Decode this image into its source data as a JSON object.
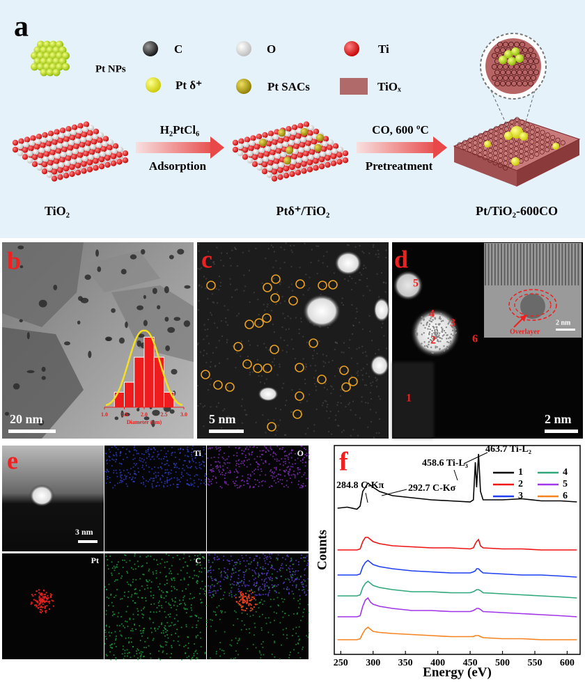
{
  "panel_a": {
    "letter": "a",
    "legend": {
      "pt_nps": "Pt NPs",
      "c": "C",
      "o": "O",
      "ti": "Ti",
      "pt_delta": "Pt δ⁺",
      "pt_sacs": "Pt SACs",
      "tiox": "TiOₓ"
    },
    "step1": {
      "reagent": "H₂PtCl₆",
      "process": "Adsorption"
    },
    "step2": {
      "condition": "CO, 600 ºC",
      "process": "Pretreatment"
    },
    "samples": [
      "TiO₂",
      "Ptδ⁺/TiO₂",
      "Pt/TiO₂-600CO"
    ]
  },
  "panel_b": {
    "letter": "b",
    "scale_bar": "20 nm",
    "histogram": {
      "bins": [
        1.25,
        1.5,
        1.75,
        2.0,
        2.25,
        2.5,
        2.75
      ],
      "counts": [
        3,
        5,
        10,
        14,
        10,
        3
      ],
      "xlim": [
        1,
        3
      ],
      "ylim": [
        0,
        16
      ],
      "xticks": [
        {
          "value": 1,
          "label": "1.0"
        },
        1.5,
        {
          "value": 2,
          "label": "2.0"
        },
        2.5,
        {
          "value": 3,
          "label": "3.0"
        }
      ],
      "xlabel": "Diameter (nm)",
      "color": "#ee1c1c"
    }
  },
  "panel_c": {
    "letter": "c",
    "scale_bar": "5 nm"
  },
  "panel_d": {
    "letter": "d",
    "scale_bar": "2 nm",
    "sites": [
      "1",
      "2",
      "3",
      "4",
      "5",
      "6"
    ],
    "inset": {
      "label": "Overlayer",
      "scale_bar": "2 nm"
    }
  },
  "panel_e": {
    "letter": "e",
    "scale_bar": "3 nm",
    "maps": [
      "Ti",
      "O",
      "Pt",
      "C"
    ]
  },
  "chart_data": {
    "type": "line",
    "letter": "f",
    "xlabel": "Energy (eV)",
    "ylabel": "Counts",
    "x": [
      245,
      260,
      275,
      280,
      284,
      288,
      292,
      296,
      300,
      310,
      330,
      360,
      390,
      420,
      450,
      455,
      458,
      460,
      463,
      466,
      470,
      500,
      530,
      560,
      590,
      615
    ],
    "series": [
      {
        "name": "1",
        "color": "#000000",
        "values": [
          70,
          70.5,
          69.5,
          71,
          78,
          80,
          82,
          81,
          80,
          78,
          76,
          75,
          74,
          73.5,
          73,
          74,
          92,
          80,
          96,
          78,
          74,
          74,
          74.5,
          73.5,
          73.5,
          73
        ]
      },
      {
        "name": "2",
        "color": "#ee1111",
        "values": [
          50,
          50,
          50,
          50.5,
          54,
          56,
          56,
          55,
          54,
          53,
          52,
          51.5,
          51,
          51,
          50.5,
          51,
          53,
          54,
          55,
          52,
          51,
          50.5,
          50.5,
          50,
          50,
          50
        ]
      },
      {
        "name": "3",
        "color": "#1f3ff0",
        "values": [
          38,
          38,
          38,
          38.5,
          42,
          44,
          45,
          44,
          43,
          42,
          41,
          40,
          39.5,
          39,
          39,
          39.5,
          40,
          41,
          41,
          40,
          39,
          38.5,
          38,
          38,
          37.5,
          37
        ]
      },
      {
        "name": "4",
        "color": "#2fa77a",
        "values": [
          28,
          28,
          28,
          28.5,
          32,
          34,
          35,
          34,
          33,
          32,
          31,
          30,
          30,
          29.5,
          29.5,
          30,
          30.5,
          31,
          31,
          30.5,
          29.5,
          29,
          28.5,
          28,
          27.5,
          27
        ]
      },
      {
        "name": "5",
        "color": "#a035e8",
        "values": [
          18,
          18,
          18,
          18.5,
          23,
          26,
          27,
          25,
          24,
          23,
          22,
          21,
          21,
          20.5,
          20.5,
          21,
          21.5,
          22,
          22,
          21.5,
          20.5,
          20,
          19.5,
          19,
          18.5,
          18
        ]
      },
      {
        "name": "6",
        "color": "#f5831f",
        "values": [
          7,
          7,
          7,
          7.5,
          10,
          12,
          13,
          12,
          11,
          10.5,
          10,
          9.5,
          9,
          8.5,
          8.5,
          8.5,
          9,
          9,
          9,
          8.5,
          8,
          7.5,
          7.5,
          7,
          7,
          7
        ]
      }
    ],
    "xlim": [
      240,
      620
    ],
    "xticks": [
      250,
      300,
      350,
      400,
      450,
      500,
      550,
      600
    ],
    "ylim": [
      0,
      100
    ],
    "annotations": [
      "284.8 C-Kπ",
      "292.7 C-Kσ",
      "458.6 Ti-L₃",
      "463.7 Ti-L₂"
    ],
    "legend": "upper right"
  }
}
